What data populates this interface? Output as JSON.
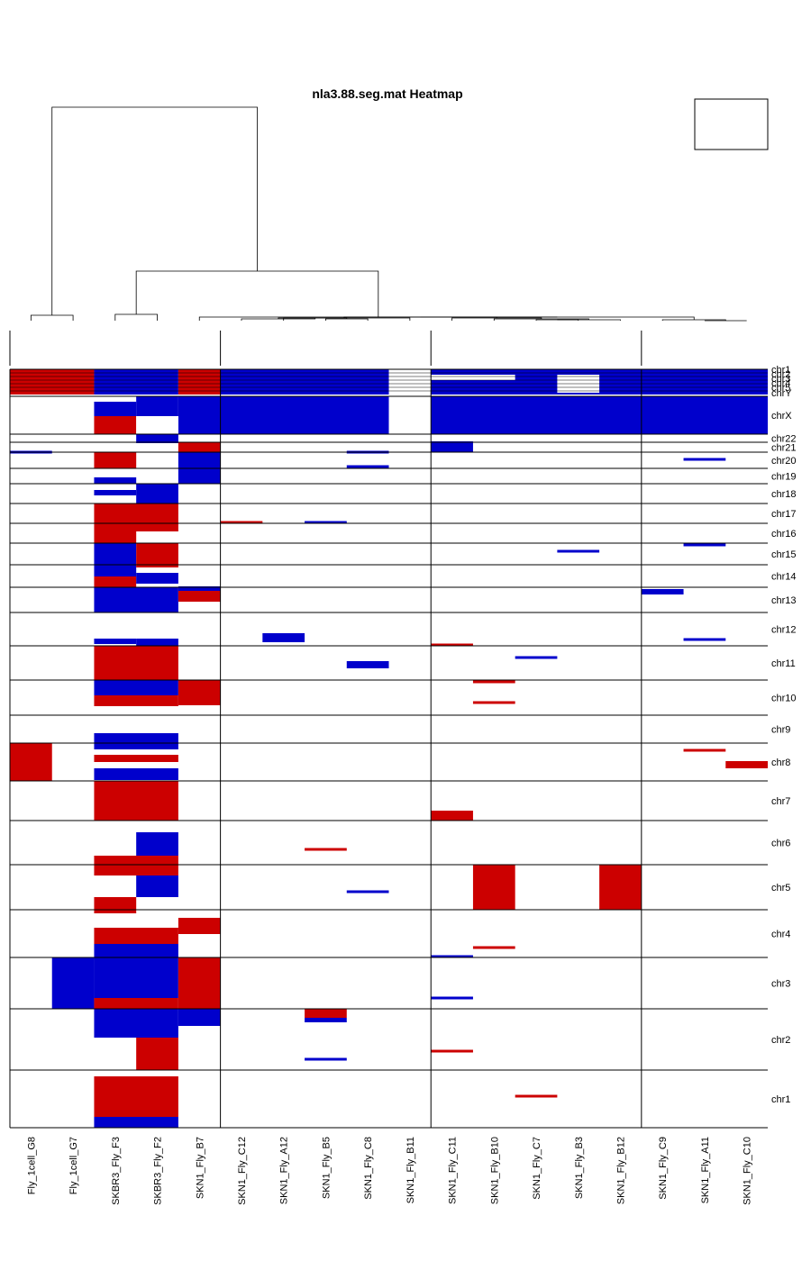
{
  "chart_data": {
    "type": "heatmap",
    "title": "nla3.88.seg.mat Heatmap",
    "columns": [
      "Fly_1cell_G8",
      "Fly_1cell_G7",
      "SKBR3_Fly_F3",
      "SKBR3_Fly_F2",
      "SKN1_Fly_B7",
      "SKN1_Fly_C12",
      "SKN1_Fly_A12",
      "SKN1_Fly_B5",
      "SKN1_Fly_C8",
      "SKN1_Fly_B11",
      "SKN1_Fly_C11",
      "SKN1_Fly_B10",
      "SKN1_Fly_C7",
      "SKN1_Fly_B3",
      "SKN1_Fly_B12",
      "SKN1_Fly_C9",
      "SKN1_Fly_A11",
      "SKN1_Fly_C10"
    ],
    "chromosomes": [
      "chr1",
      "chr2",
      "chr3",
      "chr4",
      "chr5",
      "chr6",
      "chr7",
      "chr8",
      "chr9",
      "chr10",
      "chr11",
      "chr12",
      "chr13",
      "chr14",
      "chr15",
      "chr16",
      "chr17",
      "chr18",
      "chr19",
      "chr20",
      "chr21",
      "chr22",
      "chrX",
      "chrY"
    ],
    "compressed_chromosome_labels": [
      "chr1",
      "chr2",
      "chr3",
      "chr4",
      "chr5"
    ],
    "legend": {
      "gain_color": "#cc0000",
      "loss_color": "#0000cc",
      "neutral_color": "#ffffff"
    },
    "cluster_groups": 4,
    "colors": {
      "gain": "#cc0000",
      "loss": "#0000cc",
      "line": "#000000"
    }
  }
}
